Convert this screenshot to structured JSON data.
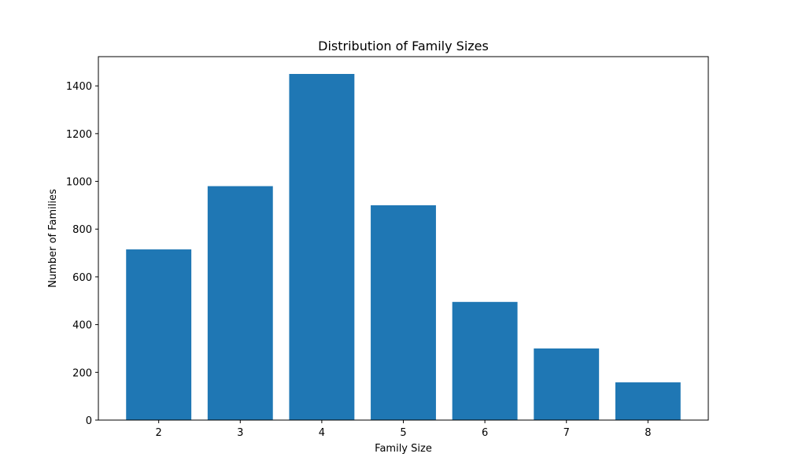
{
  "chart_data": {
    "type": "bar",
    "title": "Distribution of Family Sizes",
    "xlabel": "Family Size",
    "ylabel": "Number of Families",
    "categories": [
      "2",
      "3",
      "4",
      "5",
      "6",
      "7",
      "8"
    ],
    "values": [
      715,
      980,
      1450,
      900,
      495,
      300,
      158
    ],
    "ylim": [
      0,
      1522.5
    ],
    "yticks": [
      0,
      200,
      400,
      600,
      800,
      1000,
      1200,
      1400
    ],
    "grid": false,
    "legend": "none",
    "bar_color": "#1f77b4"
  }
}
